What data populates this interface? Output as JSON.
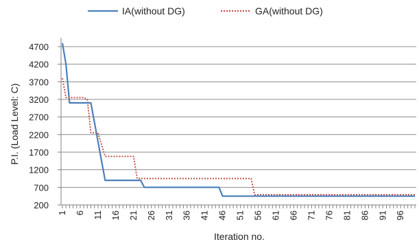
{
  "chart_data": {
    "type": "line",
    "title": "",
    "xlabel": "Iteration no.",
    "ylabel": "P.I. (Load Level: C)",
    "xlim": [
      1,
      100
    ],
    "ylim": [
      200,
      4700
    ],
    "y_ticks": [
      200,
      700,
      1200,
      1700,
      2200,
      2700,
      3200,
      3700,
      4200,
      4700
    ],
    "x_ticks": [
      1,
      6,
      11,
      16,
      21,
      26,
      31,
      36,
      41,
      46,
      51,
      56,
      61,
      66,
      71,
      76,
      81,
      86,
      91,
      96
    ],
    "grid": "horizontal",
    "legend_position": "top",
    "series": [
      {
        "name": "IA(without DG)",
        "color": "#4a7ebb",
        "style": "solid",
        "points": [
          [
            1,
            4800
          ],
          [
            2,
            4200
          ],
          [
            3,
            3100
          ],
          [
            8,
            3100
          ],
          [
            9,
            3100
          ],
          [
            13,
            900
          ],
          [
            23,
            900
          ],
          [
            24,
            700
          ],
          [
            45,
            700
          ],
          [
            46,
            450
          ],
          [
            100,
            450
          ]
        ]
      },
      {
        "name": "GA(without DG)",
        "color": "#c0504d",
        "style": "dotted",
        "points": [
          [
            1,
            3800
          ],
          [
            2,
            3250
          ],
          [
            7,
            3250
          ],
          [
            8,
            3200
          ],
          [
            9,
            2250
          ],
          [
            11,
            2250
          ],
          [
            13,
            1580
          ],
          [
            21,
            1580
          ],
          [
            22,
            950
          ],
          [
            54,
            950
          ],
          [
            55,
            490
          ],
          [
            100,
            490
          ]
        ]
      }
    ]
  }
}
